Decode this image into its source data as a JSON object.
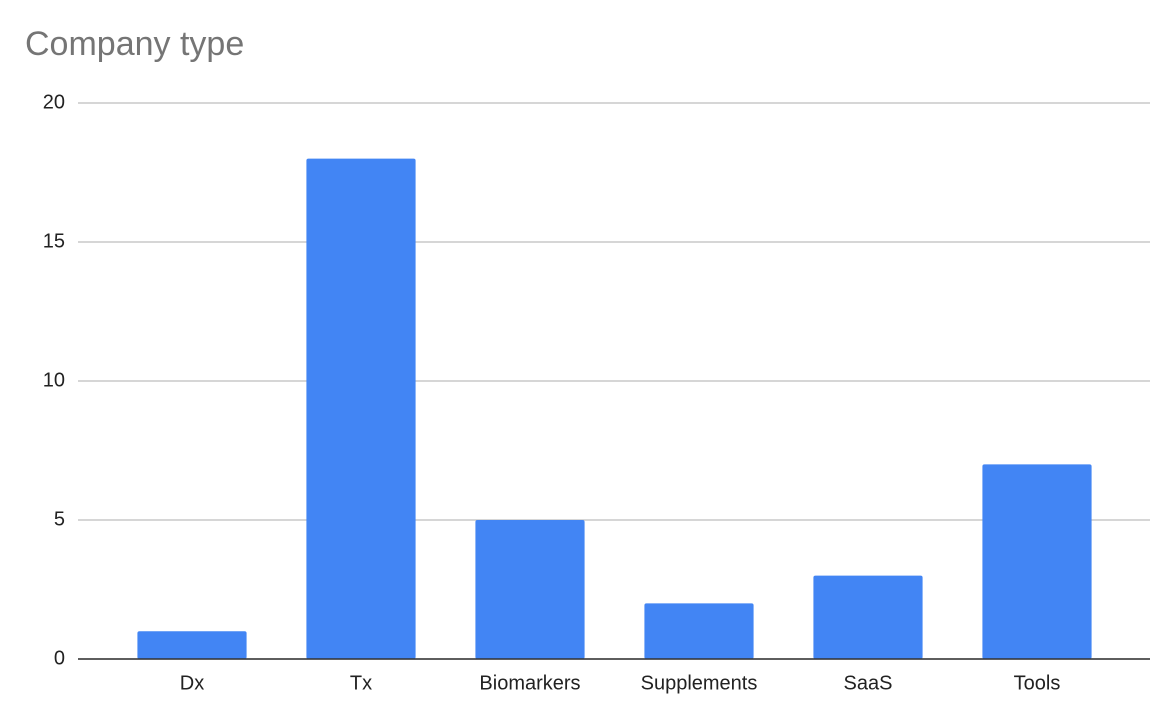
{
  "chart_data": {
    "type": "bar",
    "title": "Company type",
    "categories": [
      "Dx",
      "Tx",
      "Biomarkers",
      "Supplements",
      "SaaS",
      "Tools"
    ],
    "values": [
      1,
      18,
      5,
      2,
      3,
      7
    ],
    "color": "#4285f4",
    "ylim": [
      0,
      20
    ],
    "yticks": [
      0,
      5,
      10,
      15,
      20
    ],
    "grid": true
  }
}
